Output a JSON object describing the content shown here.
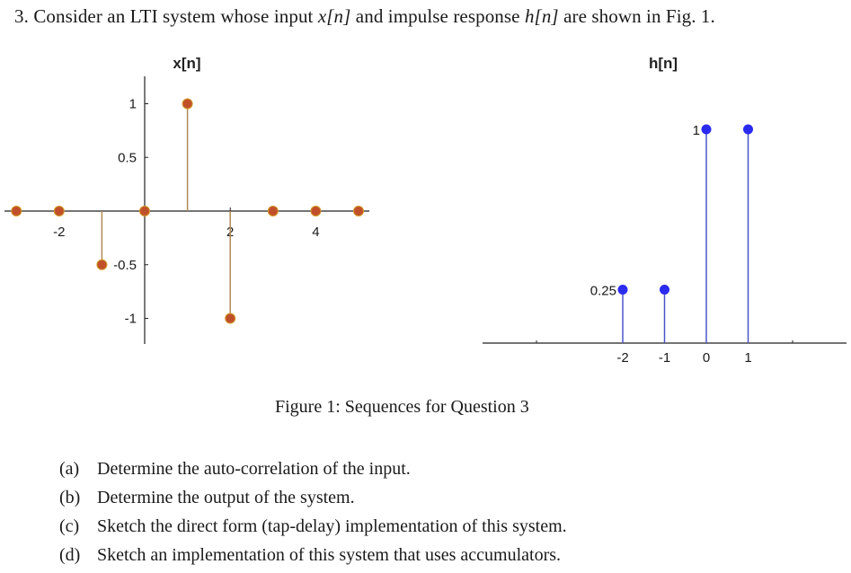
{
  "question": {
    "number": "3.",
    "text_before_x": "Consider an LTI system whose input",
    "x_symbol": "x[n]",
    "text_between": "and impulse response",
    "h_symbol": "h[n]",
    "text_after": "are shown in Fig. 1."
  },
  "figure": {
    "caption": "Figure 1: Sequences for Question 3"
  },
  "parts": [
    {
      "label": "(a)",
      "text": "Determine the auto-correlation of the input."
    },
    {
      "label": "(b)",
      "text": "Determine the output of the system."
    },
    {
      "label": "(c)",
      "text": "Sketch the direct form (tap-delay) implementation of this system."
    },
    {
      "label": "(d)",
      "text": "Sketch an implementation of this system that uses accumulators."
    }
  ],
  "colors": {
    "x_marker": "#c0502a",
    "x_marker_edge": "#d49a2a",
    "x_stem": "#b08a55",
    "h_marker": "#2b2bf0",
    "h_stem": "#4a55c8",
    "axis": "#222222"
  },
  "chart_data": [
    {
      "type": "stem",
      "title": "x[n]",
      "xlabel": "",
      "ylabel": "",
      "x": [
        -3,
        -2,
        -1,
        0,
        1,
        2,
        3,
        4,
        5
      ],
      "values": [
        0,
        0,
        -0.5,
        0,
        1,
        -1,
        0,
        0,
        0
      ],
      "xticks": [
        -2,
        2,
        4
      ],
      "xtick_labels": [
        "-2",
        "2",
        "4"
      ],
      "yticks": [
        1,
        0.5,
        -0.5,
        -1
      ],
      "ytick_labels": [
        "1",
        "0.5",
        "-0.5",
        "-1"
      ],
      "ylim": [
        -1.2,
        1.25
      ],
      "grid": false,
      "color": "#c0502a"
    },
    {
      "type": "stem",
      "title": "h[n]",
      "xlabel": "",
      "ylabel": "",
      "x": [
        -2,
        -1,
        0,
        1
      ],
      "values": [
        0.25,
        0.25,
        1,
        1
      ],
      "xticks": [
        -2,
        -1,
        0,
        1
      ],
      "xtick_labels": [
        "-2",
        "-1",
        "0",
        "1"
      ],
      "annotations": [
        {
          "text": "0.25",
          "at_x": -2
        },
        {
          "text": "1",
          "at_x": 0
        }
      ],
      "grid": false,
      "color": "#2b2bf0"
    }
  ]
}
